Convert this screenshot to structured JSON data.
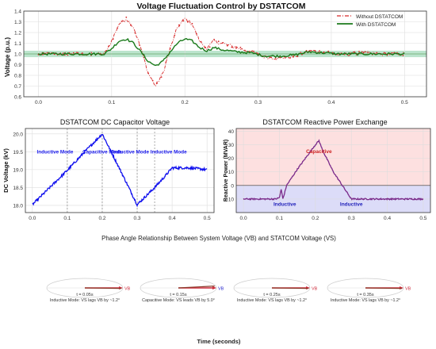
{
  "chart_data": [
    {
      "type": "line",
      "title": "Voltage Fluctuation Control by DSTATCOM",
      "xlabel": "",
      "ylabel": "Voltage (p.u.)",
      "xlim": [
        -0.02,
        0.53
      ],
      "ylim": [
        0.6,
        1.4
      ],
      "x_ticks": [
        "0.0",
        "0.1",
        "0.2",
        "0.3",
        "0.4",
        "0.5"
      ],
      "y_ticks": [
        "0.6",
        "0.7",
        "0.8",
        "0.9",
        "1.0",
        "1.1",
        "1.2",
        "1.3",
        "1.4"
      ],
      "grid": true,
      "legend": "top-right",
      "band": {
        "y": [
          0.97,
          1.03
        ],
        "color": "#3cb371"
      },
      "reference_line": {
        "y": 1.0,
        "color": "#66aa66"
      },
      "series": [
        {
          "name": "Without DSTATCOM",
          "color": "#d62728",
          "style": "dashdot-markers",
          "x": [
            0.0,
            0.05,
            0.09,
            0.1,
            0.11,
            0.12,
            0.13,
            0.14,
            0.15,
            0.16,
            0.17,
            0.18,
            0.19,
            0.2,
            0.21,
            0.22,
            0.23,
            0.24,
            0.25,
            0.27,
            0.29,
            0.31,
            0.33,
            0.35,
            0.37,
            0.39,
            0.41,
            0.44,
            0.47,
            0.5
          ],
          "y": [
            1.0,
            1.0,
            1.0,
            1.12,
            1.28,
            1.33,
            1.25,
            1.05,
            0.82,
            0.7,
            0.82,
            1.05,
            1.25,
            1.33,
            1.28,
            1.12,
            1.05,
            1.12,
            1.1,
            1.06,
            1.02,
            0.97,
            0.96,
            0.98,
            1.03,
            1.02,
            0.99,
            1.01,
            1.0,
            1.0
          ]
        },
        {
          "name": "With DSTATCOM",
          "color": "#1a7a1a",
          "style": "solid",
          "x": [
            0.0,
            0.05,
            0.09,
            0.1,
            0.11,
            0.12,
            0.13,
            0.14,
            0.15,
            0.16,
            0.17,
            0.18,
            0.19,
            0.2,
            0.21,
            0.22,
            0.23,
            0.24,
            0.25,
            0.27,
            0.29,
            0.31,
            0.33,
            0.35,
            0.37,
            0.39,
            0.41,
            0.44,
            0.47,
            0.5
          ],
          "y": [
            1.0,
            1.0,
            1.0,
            1.05,
            1.12,
            1.14,
            1.1,
            1.02,
            0.93,
            0.89,
            0.93,
            1.02,
            1.1,
            1.14,
            1.12,
            1.06,
            1.03,
            1.06,
            1.04,
            1.02,
            1.01,
            0.98,
            0.98,
            0.99,
            1.02,
            1.01,
            1.0,
            1.0,
            1.0,
            1.0
          ]
        }
      ]
    },
    {
      "type": "line",
      "title": "DSTATCOM DC Capacitor Voltage",
      "xlabel": "",
      "ylabel": "DC Voltage (kV)",
      "xlim": [
        -0.02,
        0.52
      ],
      "ylim": [
        17.8,
        20.15
      ],
      "x_ticks": [
        "0.0",
        "0.1",
        "0.2",
        "0.3",
        "0.4",
        "0.5"
      ],
      "y_ticks": [
        "18.0",
        "18.5",
        "19.0",
        "19.5",
        "20.0"
      ],
      "grid": true,
      "color": "#1010ee",
      "vlines": [
        0.1,
        0.2,
        0.3,
        0.35
      ],
      "annotations": [
        {
          "text": "Inductive Mode",
          "x": 0.065,
          "y": 19.5
        },
        {
          "text": "Capacitive Mode",
          "x": 0.2,
          "y": 19.5
        },
        {
          "text": "Inductive Mode",
          "x": 0.282,
          "y": 19.5
        },
        {
          "text": "Inductive Mode",
          "x": 0.39,
          "y": 19.5
        }
      ],
      "x": [
        0.0,
        0.05,
        0.1,
        0.15,
        0.2,
        0.25,
        0.3,
        0.35,
        0.38,
        0.4,
        0.45,
        0.5
      ],
      "y": [
        18.02,
        18.5,
        18.98,
        19.5,
        20.0,
        19.02,
        18.02,
        18.5,
        18.82,
        19.05,
        19.05,
        19.0
      ]
    },
    {
      "type": "line",
      "title": "DSTATCOM Reactive Power Exchange",
      "xlabel": "",
      "ylabel": "Reactive Power (MVAR)",
      "xlim": [
        -0.02,
        0.52
      ],
      "ylim": [
        -20,
        42
      ],
      "x_ticks": [
        "0.0",
        "0.1",
        "0.2",
        "0.3",
        "0.4",
        "0.5"
      ],
      "y_ticks": [
        "-10",
        "0",
        "10",
        "20",
        "30",
        "40"
      ],
      "grid": true,
      "color": "#7a2a8a",
      "regions": [
        {
          "label": "Capacitive",
          "color": "#fde0e0"
        },
        {
          "label": "Inductive",
          "color": "#dcdcf8"
        }
      ],
      "annotations": [
        {
          "text": "Capacitive",
          "x": 0.21,
          "y": 25
        },
        {
          "text": "Inductive",
          "x": 0.115,
          "y": -14
        },
        {
          "text": "Inductive",
          "x": 0.3,
          "y": -14
        }
      ],
      "x": [
        0.0,
        0.09,
        0.1,
        0.105,
        0.11,
        0.115,
        0.12,
        0.15,
        0.2,
        0.21,
        0.22,
        0.25,
        0.3,
        0.35,
        0.4,
        0.45,
        0.5
      ],
      "y": [
        -10,
        -10,
        -9,
        -3,
        -10,
        -5,
        0,
        12,
        30,
        33,
        26,
        10,
        -10,
        -10,
        -10,
        -10,
        -10
      ]
    }
  ],
  "phase": {
    "title": "Phase Angle Relationship Between System Voltage (VB) and STATCOM Voltage (VS)",
    "xlabel": "Time (seconds)",
    "panels": [
      {
        "time": "t = 0.05s",
        "caption": "Inductive Mode: VS lags VB by ~1.2°",
        "vb_label": "VB",
        "vs_label": "VS",
        "angle_deg": -1.2
      },
      {
        "time": "t = 0.15s",
        "caption": "Capacitive Mode: VS leads VB by 5.0°",
        "vb_label": "VB",
        "vs_label": "VS",
        "angle_deg": 5.0
      },
      {
        "time": "t = 0.25s",
        "caption": "Inductive Mode: VS lags VB by ~1.2°",
        "vb_label": "VB",
        "vs_label": "VS",
        "angle_deg": -1.2
      },
      {
        "time": "t = 0.35s",
        "caption": "Inductive Mode: VS lags VB by ~1.2°",
        "vb_label": "VB",
        "vs_label": "VS",
        "angle_deg": -1.2
      }
    ]
  }
}
